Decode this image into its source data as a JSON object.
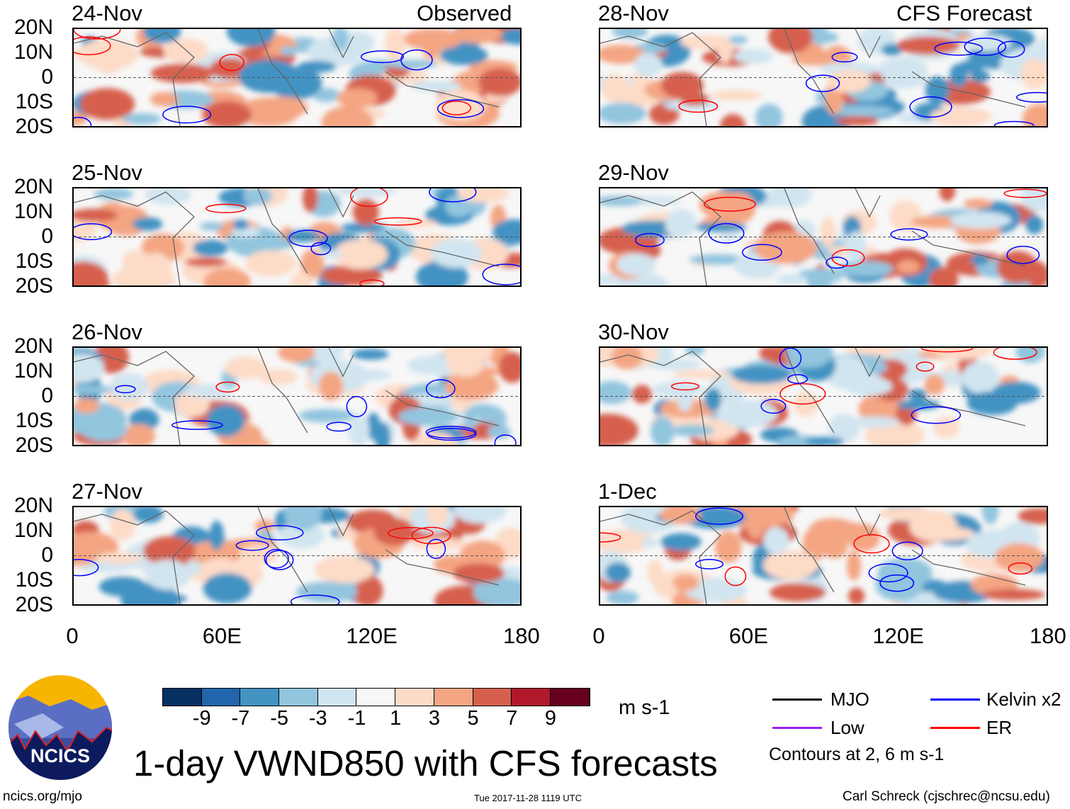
{
  "figure": {
    "title": "1-day VWND850 with CFS forecasts",
    "left_header": "Observed",
    "right_header": "CFS Forecast",
    "latitude_labels": [
      "20N",
      "10N",
      "0",
      "10S",
      "20S"
    ],
    "longitude_labels": [
      "0",
      "60E",
      "120E",
      "180"
    ],
    "observed_panels": [
      {
        "date": "24-Nov"
      },
      {
        "date": "25-Nov"
      },
      {
        "date": "26-Nov"
      },
      {
        "date": "27-Nov"
      }
    ],
    "forecast_panels": [
      {
        "date": "28-Nov"
      },
      {
        "date": "29-Nov"
      },
      {
        "date": "30-Nov"
      },
      {
        "date": "1-Dec"
      }
    ]
  },
  "colorbar": {
    "labels": [
      "-9",
      "-7",
      "-5",
      "-3",
      "-1",
      "1",
      "3",
      "5",
      "7",
      "9"
    ],
    "colors": [
      "#053061",
      "#2166ac",
      "#4393c3",
      "#92c5de",
      "#d1e5f0",
      "#f7f7f7",
      "#fddbc7",
      "#f4a582",
      "#d6604d",
      "#b2182b",
      "#67001f"
    ],
    "units": "m s-1"
  },
  "legend": {
    "items": [
      {
        "label": "MJO",
        "color": "#000000"
      },
      {
        "label": "Kelvin x2",
        "color": "#0000ff"
      },
      {
        "label": "Low",
        "color": "#a020f0"
      },
      {
        "label": "ER",
        "color": "#ff0000"
      }
    ],
    "note": "Contours at 2, 6 m s-1"
  },
  "logo": {
    "text": "NCICS"
  },
  "footer": {
    "url": "ncics.org/mjo",
    "timestamp": "Tue 2017-11-28 1119 UTC",
    "credit": "Carl Schreck (cjschrec@ncsu.edu)"
  }
}
